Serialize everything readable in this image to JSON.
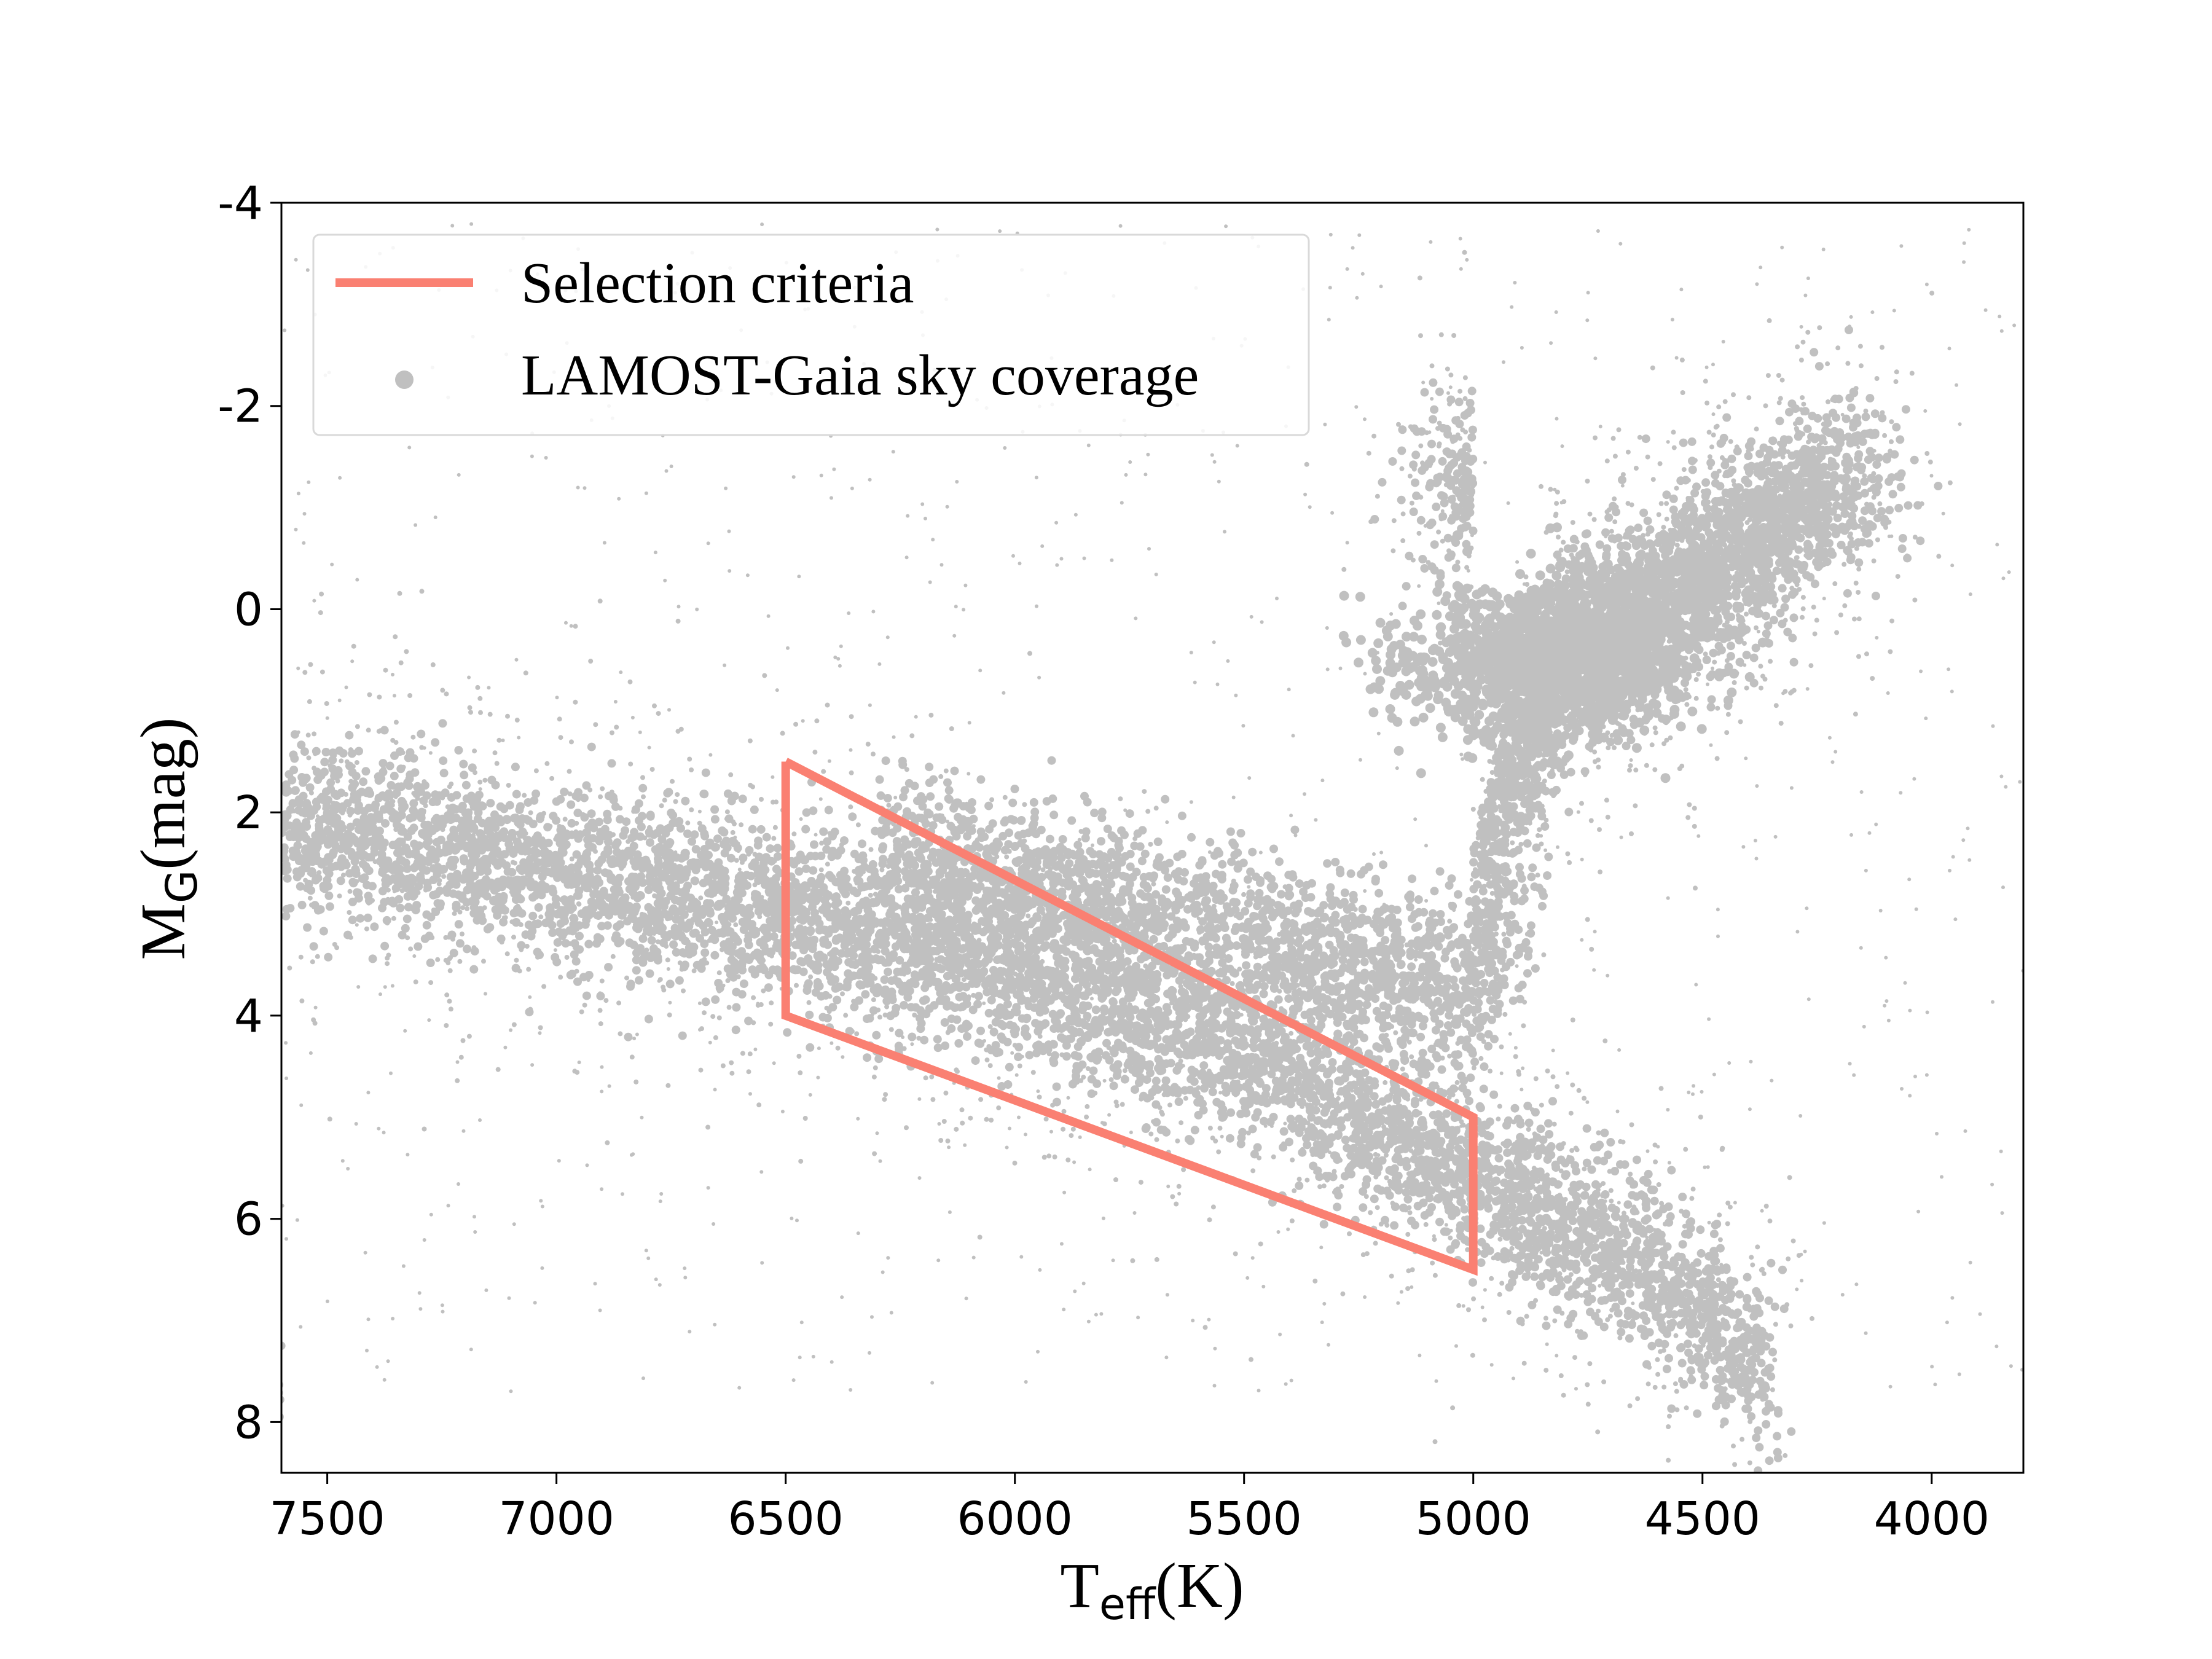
{
  "chart_data": {
    "type": "scatter",
    "xlabel": {
      "main": "T",
      "sub": "eff",
      "unit": "(K)"
    },
    "ylabel": {
      "main": "M",
      "sub": "G",
      "unit": "(mag)"
    },
    "xlim": [
      7600,
      3800
    ],
    "ylim": [
      8.5,
      -4
    ],
    "x_ticks": [
      7500,
      7000,
      6500,
      6000,
      5500,
      5000,
      4500,
      4000
    ],
    "y_ticks": [
      -4,
      -2,
      0,
      2,
      4,
      6,
      8
    ],
    "grid": false,
    "legend_position": "upper-left",
    "series": [
      {
        "name": "Selection criteria",
        "kind": "line",
        "color": "#fa8072",
        "x": [
          6500,
          6500,
          5000,
          5000,
          6500
        ],
        "y": [
          1.5,
          4.0,
          6.5,
          5.0,
          1.5
        ]
      },
      {
        "name": "LAMOST-Gaia sky coverage",
        "kind": "scatter",
        "color": "#c0c0c0",
        "density_ridges": {
          "main_sequence": {
            "x": [
              7600,
              7000,
              6500,
              6000,
              5500,
              5000,
              4700,
              4500,
              4350
            ],
            "y": [
              2.1,
              2.6,
              3.0,
              3.6,
              4.4,
              5.6,
              6.3,
              6.9,
              7.5
            ]
          },
          "subgiant_branch": {
            "x": [
              6300,
              6000,
              5500,
              5200,
              5000,
              4900
            ],
            "y": [
              2.5,
              2.8,
              3.2,
              3.6,
              3.8,
              3.0
            ]
          },
          "red_giant_branch": {
            "x": [
              5000,
              4900,
              4800,
              4700,
              4600,
              4500,
              4400,
              4300,
              4200
            ],
            "y": [
              2.8,
              1.5,
              0.5,
              0.2,
              0.0,
              -0.3,
              -0.6,
              -0.9,
              -1.2
            ]
          },
          "red_clump": {
            "x": [
              5000,
              4850,
              4700
            ],
            "y": [
              0.6,
              0.4,
              0.5
            ]
          }
        }
      }
    ]
  }
}
